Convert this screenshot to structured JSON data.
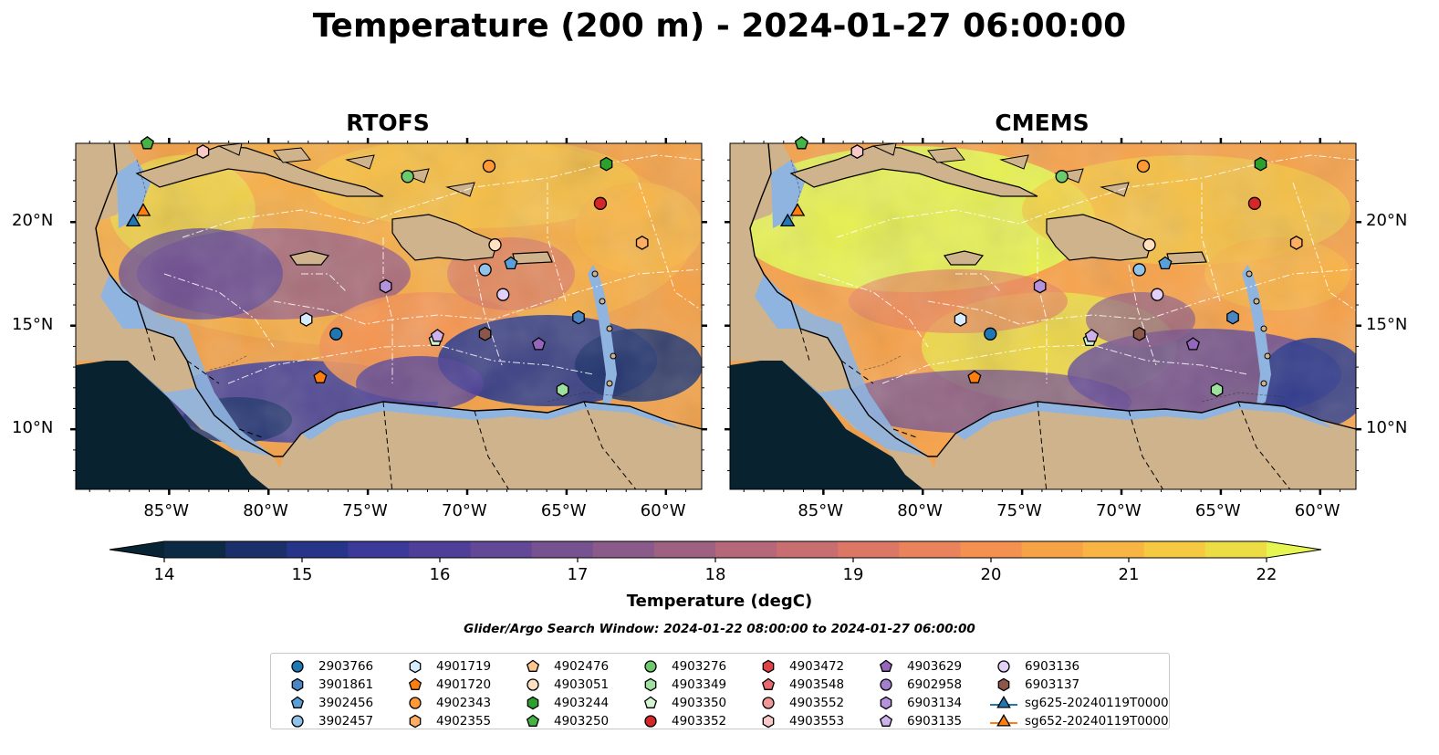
{
  "title": "Temperature (200 m) - 2024-01-27 06:00:00",
  "panels": [
    {
      "title": "RTOFS"
    },
    {
      "title": "CMEMS"
    }
  ],
  "lon_ticks": [
    "85°W",
    "80°W",
    "75°W",
    "70°W",
    "65°W",
    "60°W"
  ],
  "lat_ticks": [
    "20°N",
    "15°N",
    "10°N"
  ],
  "colorbar": {
    "label": "Temperature (degC)",
    "ticks": [
      "14",
      "15",
      "16",
      "17",
      "18",
      "19",
      "20",
      "21",
      "22"
    ],
    "colors": [
      "#0d2a45",
      "#1b2f6a",
      "#26358a",
      "#3b3a9a",
      "#4f3f99",
      "#624896",
      "#765290",
      "#8a5a8a",
      "#9e6182",
      "#b46879",
      "#c96e70",
      "#dc7766",
      "#ea835c",
      "#f49150",
      "#f8a248",
      "#f9b543",
      "#f6c942",
      "#ecdd44"
    ],
    "under_color": "#082333",
    "over_color": "#e6f552"
  },
  "search_window": "Glider/Argo Search Window: 2024-01-22 08:00:00 to 2024-01-27 06:00:00",
  "colors": {
    "land": "#cfb38c",
    "shelf": "#8fb4e0",
    "deep": "#08222f"
  },
  "legend": [
    {
      "label": "2903766",
      "marker": "circle",
      "color": "#1f77b4"
    },
    {
      "label": "3901861",
      "marker": "hexagon",
      "color": "#4a86c5"
    },
    {
      "label": "3902456",
      "marker": "pentagon",
      "color": "#5aa0d8"
    },
    {
      "label": "3902457",
      "marker": "circle",
      "color": "#91c3ea"
    },
    {
      "label": "4901719",
      "marker": "hexagon",
      "color": "#d8ecff"
    },
    {
      "label": "4901720",
      "marker": "pentagon",
      "color": "#ff7f0e"
    },
    {
      "label": "4902343",
      "marker": "circle",
      "color": "#ff9a35"
    },
    {
      "label": "4902355",
      "marker": "hexagon",
      "color": "#ffad63"
    },
    {
      "label": "4902476",
      "marker": "pentagon",
      "color": "#ffc58f"
    },
    {
      "label": "4903051",
      "marker": "circle",
      "color": "#ffe0c0"
    },
    {
      "label": "4903244",
      "marker": "hexagon",
      "color": "#2ca02c"
    },
    {
      "label": "4903250",
      "marker": "pentagon",
      "color": "#45b345"
    },
    {
      "label": "4903276",
      "marker": "circle",
      "color": "#6cc96c"
    },
    {
      "label": "4903349",
      "marker": "hexagon",
      "color": "#9ee09e"
    },
    {
      "label": "4903350",
      "marker": "pentagon",
      "color": "#d3f5d3"
    },
    {
      "label": "4903352",
      "marker": "circle",
      "color": "#d62728"
    },
    {
      "label": "4903472",
      "marker": "hexagon",
      "color": "#e0424a"
    },
    {
      "label": "4903548",
      "marker": "pentagon",
      "color": "#e86a6e"
    },
    {
      "label": "4903552",
      "marker": "circle",
      "color": "#f29798"
    },
    {
      "label": "4903553",
      "marker": "hexagon",
      "color": "#f9c9c9"
    },
    {
      "label": "4903629",
      "marker": "pentagon",
      "color": "#9467bd"
    },
    {
      "label": "6902958",
      "marker": "circle",
      "color": "#a47fcc"
    },
    {
      "label": "6903134",
      "marker": "hexagon",
      "color": "#b593dc"
    },
    {
      "label": "6903135",
      "marker": "pentagon",
      "color": "#cdb2ec"
    },
    {
      "label": "6903136",
      "marker": "circle",
      "color": "#e3d0f8"
    },
    {
      "label": "6903137",
      "marker": "hexagon",
      "color": "#8c564b"
    },
    {
      "label": "sg625-20240119T0000",
      "marker": "triangle-line",
      "color": "#1f77b4"
    },
    {
      "label": "sg652-20240119T0000",
      "marker": "triangle-line",
      "color": "#ff7f0e"
    }
  ],
  "floats": [
    {
      "id": "2903766",
      "lon": -76.6,
      "lat": 14.6
    },
    {
      "id": "3901861",
      "lon": -64.4,
      "lat": 15.4
    },
    {
      "id": "3902456",
      "lon": -67.8,
      "lat": 18.0
    },
    {
      "id": "3902457",
      "lon": -69.1,
      "lat": 17.7
    },
    {
      "id": "4901719",
      "lon": -78.1,
      "lat": 15.3
    },
    {
      "id": "4901720",
      "lon": -77.4,
      "lat": 12.5
    },
    {
      "id": "4903051",
      "lon": -68.6,
      "lat": 18.9
    },
    {
      "id": "4903244",
      "lon": -63.0,
      "lat": 22.8
    },
    {
      "id": "4903250",
      "lon": -86.1,
      "lat": 23.8
    },
    {
      "id": "4903276",
      "lon": -73.0,
      "lat": 22.2
    },
    {
      "id": "4903349",
      "lon": -65.2,
      "lat": 11.9
    },
    {
      "id": "4903350",
      "lon": -71.6,
      "lat": 14.3
    },
    {
      "id": "4903352",
      "lon": -63.3,
      "lat": 20.9
    },
    {
      "id": "4903553",
      "lon": -83.3,
      "lat": 23.4
    },
    {
      "id": "4903629",
      "lon": -66.4,
      "lat": 14.1
    },
    {
      "id": "6903134",
      "lon": -74.1,
      "lat": 16.9
    },
    {
      "id": "6903135",
      "lon": -71.5,
      "lat": 14.5
    },
    {
      "id": "6903136",
      "lon": -68.2,
      "lat": 16.5
    },
    {
      "id": "6903137",
      "lon": -69.1,
      "lat": 14.6
    },
    {
      "id": "4902343",
      "lon": -68.9,
      "lat": 22.7
    },
    {
      "id": "4902355",
      "lon": -61.2,
      "lat": 19.0
    }
  ],
  "gliders": [
    {
      "id": "sg625-20240119T0000",
      "lon": -86.8,
      "lat": 20.0
    },
    {
      "id": "sg652-20240119T0000",
      "lon": -86.3,
      "lat": 20.5
    }
  ]
}
